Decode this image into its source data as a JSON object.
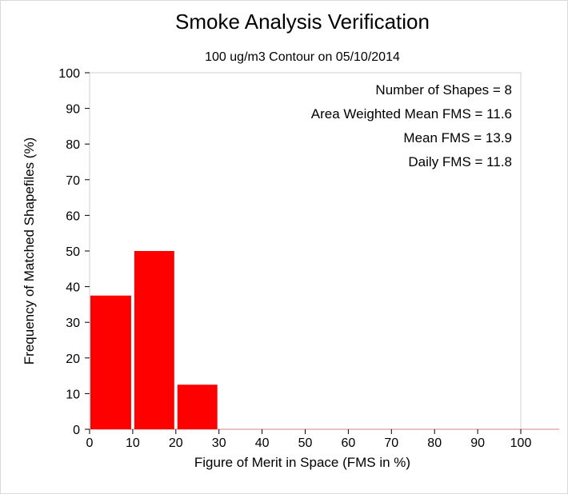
{
  "chart_data": {
    "type": "bar",
    "title": "Smoke Analysis Verification",
    "subtitle": "100 ug/m3 Contour on 05/10/2014",
    "xlabel": "Figure of Merit in Space (FMS in %)",
    "ylabel": "Frequency of Matched Shapefiles (%)",
    "xlim": [
      0,
      100
    ],
    "ylim": [
      0,
      100
    ],
    "xticks": [
      "0",
      "10",
      "20",
      "30",
      "40",
      "50",
      "60",
      "70",
      "80",
      "90",
      "100"
    ],
    "yticks": [
      "0",
      "10",
      "20",
      "30",
      "40",
      "50",
      "60",
      "70",
      "80",
      "90",
      "100"
    ],
    "bins": [
      {
        "x0": 0,
        "x1": 10,
        "value": 37.5
      },
      {
        "x0": 10,
        "x1": 20,
        "value": 50.0
      },
      {
        "x0": 20,
        "x1": 30,
        "value": 12.5
      }
    ],
    "bar_color": "#ff0000",
    "grid": false,
    "stats": [
      "Number of Shapes = 8",
      "Area Weighted Mean FMS = 11.6",
      "Mean FMS = 13.9",
      "Daily FMS = 11.8"
    ]
  }
}
